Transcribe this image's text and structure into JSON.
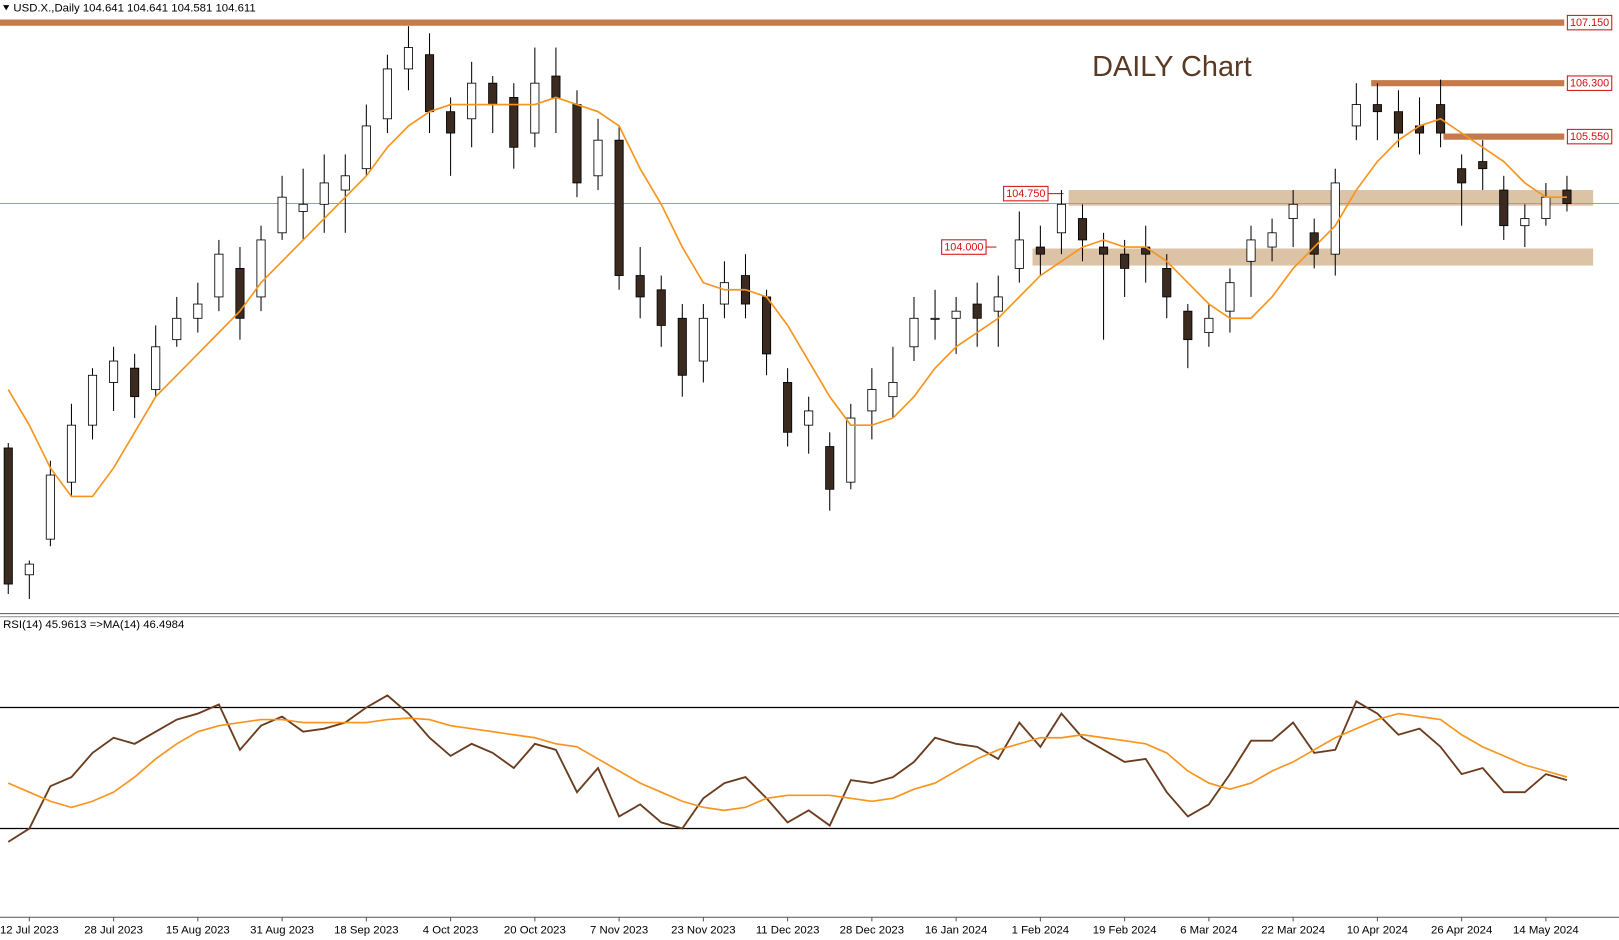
{
  "chart_data": [
    {
      "type": "candlestick",
      "title": "USD.X.,Daily 104.641 104.641 104.581 104.611",
      "annotation": "DAILY Chart",
      "open": [
        101.18,
        99.4,
        99.9,
        100.7,
        101.5,
        102.1,
        102.3,
        102.0,
        102.7,
        103.0,
        103.3,
        103.7,
        103.3,
        104.2,
        104.5,
        104.6,
        104.8,
        105.1,
        105.8,
        106.5,
        106.7,
        105.9,
        105.8,
        106.3,
        106.1,
        105.6,
        106.4,
        106.0,
        105.0,
        105.5,
        103.6,
        103.4,
        103.0,
        102.4,
        103.2,
        103.6,
        103.3,
        102.1,
        101.5,
        101.2,
        100.7,
        101.7,
        101.9,
        102.6,
        103.0,
        103.0,
        103.2,
        103.1,
        103.7,
        104.0,
        104.2,
        104.4,
        104.0,
        103.9,
        104.0,
        103.7,
        103.1,
        102.8,
        103.1,
        103.8,
        104.0,
        104.4,
        104.2,
        103.9,
        105.7,
        106.0,
        105.9,
        105.7,
        106.0,
        105.1,
        105.2,
        104.8,
        104.3,
        104.4,
        104.8
      ],
      "high": [
        101.25,
        99.6,
        101.0,
        101.8,
        102.3,
        102.6,
        102.5,
        102.9,
        103.3,
        103.5,
        104.1,
        104.0,
        104.3,
        105.0,
        105.1,
        105.3,
        105.3,
        106.0,
        106.7,
        107.1,
        107.0,
        106.1,
        106.6,
        106.4,
        106.3,
        106.8,
        106.8,
        106.2,
        105.8,
        105.7,
        104.0,
        103.6,
        103.2,
        103.2,
        103.8,
        103.9,
        103.4,
        102.3,
        101.9,
        101.4,
        101.8,
        102.3,
        102.6,
        103.3,
        103.4,
        103.3,
        103.5,
        103.6,
        104.5,
        104.3,
        104.8,
        104.6,
        104.2,
        104.1,
        104.3,
        103.9,
        103.2,
        103.2,
        103.7,
        104.3,
        104.4,
        104.8,
        104.4,
        105.1,
        106.3,
        106.3,
        106.2,
        106.1,
        106.35,
        105.3,
        105.5,
        105.0,
        104.6,
        104.9,
        105.0
      ],
      "low": [
        99.13,
        99.06,
        99.8,
        100.5,
        101.3,
        101.7,
        101.6,
        101.9,
        102.6,
        102.8,
        103.1,
        102.7,
        103.1,
        104.1,
        104.1,
        104.2,
        104.2,
        105.0,
        105.6,
        106.2,
        105.6,
        105.0,
        105.4,
        105.6,
        105.1,
        105.4,
        105.6,
        104.7,
        104.8,
        103.4,
        103.0,
        102.6,
        101.9,
        102.1,
        103.0,
        103.0,
        102.2,
        101.2,
        101.1,
        100.3,
        100.6,
        101.3,
        101.6,
        102.4,
        102.7,
        102.5,
        102.6,
        102.6,
        103.5,
        103.6,
        103.9,
        103.8,
        102.7,
        103.3,
        103.5,
        103.0,
        102.3,
        102.6,
        102.8,
        103.3,
        103.8,
        104.0,
        103.7,
        103.6,
        105.5,
        105.5,
        105.4,
        105.3,
        105.4,
        104.3,
        104.8,
        104.1,
        104.0,
        104.3,
        104.5
      ],
      "close": [
        99.27,
        99.55,
        100.8,
        101.5,
        102.2,
        102.4,
        101.9,
        102.6,
        103.0,
        103.2,
        103.9,
        103.0,
        104.1,
        104.7,
        104.6,
        104.9,
        105.0,
        105.7,
        106.5,
        106.8,
        105.9,
        105.6,
        106.3,
        106.0,
        105.4,
        106.3,
        106.1,
        104.9,
        105.5,
        103.6,
        103.3,
        102.9,
        102.2,
        103.0,
        103.5,
        103.2,
        102.5,
        101.4,
        101.7,
        100.6,
        101.6,
        102.0,
        102.1,
        103.0,
        103.0,
        103.1,
        103.0,
        103.3,
        104.1,
        103.9,
        104.6,
        104.1,
        103.9,
        103.7,
        103.9,
        103.3,
        102.7,
        103.0,
        103.5,
        104.1,
        104.2,
        104.6,
        103.9,
        104.9,
        106.0,
        105.9,
        105.6,
        105.6,
        105.6,
        104.9,
        105.1,
        104.3,
        104.4,
        104.7,
        104.61
      ],
      "bull_color": "#ffffff",
      "bear_color": "#3b2a20",
      "ma": {
        "color": "#f7941d",
        "values": [
          102.0,
          101.5,
          100.9,
          100.5,
          100.5,
          100.9,
          101.4,
          101.9,
          102.2,
          102.5,
          102.8,
          103.1,
          103.5,
          103.8,
          104.1,
          104.4,
          104.7,
          105.0,
          105.4,
          105.7,
          105.9,
          106.0,
          106.0,
          106.0,
          106.0,
          106.0,
          106.1,
          106.0,
          105.9,
          105.7,
          105.1,
          104.6,
          104.0,
          103.5,
          103.4,
          103.4,
          103.3,
          102.9,
          102.4,
          101.9,
          101.5,
          101.5,
          101.6,
          101.9,
          102.3,
          102.6,
          102.8,
          103.0,
          103.3,
          103.6,
          103.8,
          104.0,
          104.1,
          104.0,
          104.0,
          103.8,
          103.5,
          103.2,
          103.0,
          103.0,
          103.3,
          103.7,
          104.0,
          104.3,
          104.8,
          105.2,
          105.5,
          105.7,
          105.8,
          105.6,
          105.4,
          105.2,
          104.9,
          104.7,
          104.7
        ]
      },
      "ylim": [
        98.87,
        107.25
      ],
      "levels": [
        {
          "value": 107.15,
          "label": "107.150"
        },
        {
          "value": 106.3,
          "label": "106.300"
        },
        {
          "value": 105.55,
          "label": "105.550"
        },
        {
          "value": 104.75,
          "label": "104.750"
        },
        {
          "value": 104.0,
          "label": "104.000"
        }
      ],
      "level_color": "#c47a4a",
      "zones": [
        {
          "low": 104.58,
          "high": 104.8
        },
        {
          "low": 103.74,
          "high": 103.98
        }
      ],
      "zone_color": "#dcc3a6",
      "price_line": 104.611,
      "price_line_color": "#8fa3b8"
    },
    {
      "type": "line",
      "title": "RSI(14) 45.9613 =>MA(14) 46.4984",
      "categories": [
        null,
        "12 Jul 2023",
        null,
        null,
        null,
        "28 Jul 2023",
        null,
        null,
        null,
        "15 Aug 2023",
        null,
        null,
        null,
        "31 Aug 2023",
        null,
        null,
        null,
        "18 Sep 2023",
        null,
        null,
        null,
        "4 Oct 2023",
        null,
        null,
        null,
        "20 Oct 2023",
        null,
        null,
        null,
        "7 Nov 2023",
        null,
        null,
        null,
        "23 Nov 2023",
        null,
        null,
        null,
        "11 Dec 2023",
        null,
        null,
        null,
        "28 Dec 2023",
        null,
        null,
        null,
        "16 Jan 2024",
        null,
        null,
        null,
        "1 Feb 2024",
        null,
        null,
        null,
        "19 Feb 2024",
        null,
        null,
        null,
        "6 Mar 2024",
        null,
        null,
        null,
        "22 Mar 2024",
        null,
        null,
        null,
        "10 Apr 2024",
        null,
        null,
        null,
        "26 Apr 2024",
        null,
        null,
        null,
        "14 May 2024",
        null
      ],
      "series": [
        {
          "color": "#6b3d1f",
          "values": [
            25.6,
            30,
            44,
            47,
            55,
            60,
            58,
            62,
            66,
            68,
            71,
            56,
            64,
            67,
            62,
            63,
            65,
            70,
            74,
            68,
            60,
            54,
            58,
            55,
            50,
            58,
            56,
            42,
            50,
            34,
            38,
            32,
            30,
            40,
            45,
            47,
            40,
            32,
            36,
            31,
            46,
            45,
            47,
            52,
            60,
            58,
            57,
            53,
            65,
            57,
            68,
            60,
            56,
            52,
            53,
            42,
            34,
            38,
            48,
            59,
            59,
            65,
            55,
            56,
            72,
            68,
            61,
            63,
            57,
            48,
            50,
            42,
            42,
            48,
            46
          ]
        },
        {
          "color": "#f7941d",
          "values": [
            45,
            42,
            39,
            37,
            39,
            42,
            47,
            53,
            58,
            62,
            64,
            65,
            66,
            66,
            65,
            65,
            65,
            65,
            66,
            66.5,
            66,
            64,
            63,
            62,
            61,
            60,
            58,
            57,
            53,
            49,
            45,
            42,
            39,
            37,
            36,
            37,
            40,
            41,
            41,
            41,
            40,
            39,
            40,
            43,
            45,
            49,
            53,
            56,
            58,
            60,
            60,
            61,
            60,
            59,
            58,
            55,
            49,
            45,
            43,
            45,
            49,
            52,
            56,
            60,
            63,
            66,
            68,
            67,
            66,
            61,
            57,
            54,
            51,
            49,
            47
          ]
        }
      ],
      "ylim": [
        0,
        100
      ],
      "levels": [
        30,
        70
      ]
    }
  ]
}
